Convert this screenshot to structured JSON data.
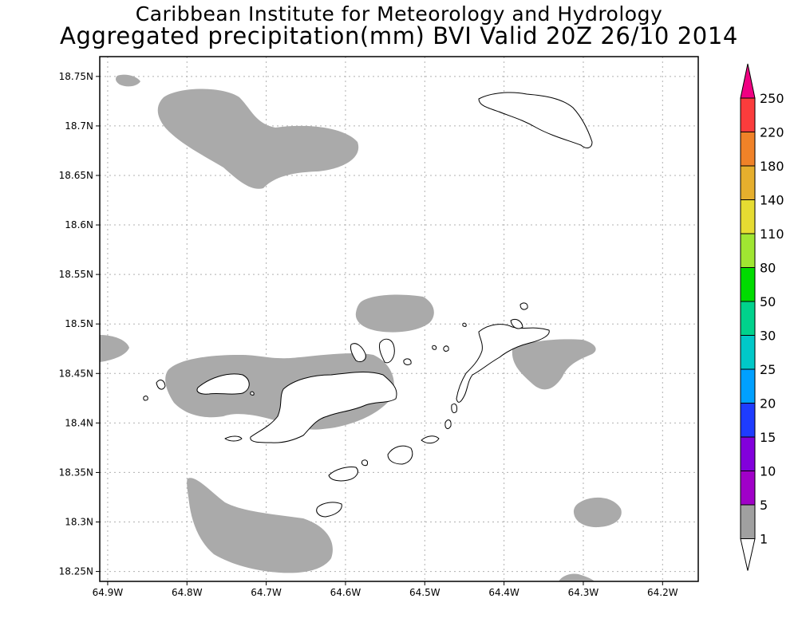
{
  "title_line1": "Caribbean Institute for Meteorology and Hydrology",
  "title_line2": "Aggregated precipitation(mm) BVI Valid 20Z 26/10 2014",
  "map": {
    "lon_range": [
      -64.91,
      -64.155
    ],
    "lat_range": [
      18.24,
      18.77
    ],
    "lon_ticks": [
      {
        "value": -64.9,
        "label": "64.9W"
      },
      {
        "value": -64.8,
        "label": "64.8W"
      },
      {
        "value": -64.7,
        "label": "64.7W"
      },
      {
        "value": -64.6,
        "label": "64.6W"
      },
      {
        "value": -64.5,
        "label": "64.5W"
      },
      {
        "value": -64.4,
        "label": "64.4W"
      },
      {
        "value": -64.3,
        "label": "64.3W"
      },
      {
        "value": -64.2,
        "label": "64.2W"
      }
    ],
    "lat_ticks": [
      {
        "value": 18.75,
        "label": "18.75N"
      },
      {
        "value": 18.7,
        "label": "18.7N"
      },
      {
        "value": 18.65,
        "label": "18.65N"
      },
      {
        "value": 18.6,
        "label": "18.6N"
      },
      {
        "value": 18.55,
        "label": "18.55N"
      },
      {
        "value": 18.5,
        "label": "18.5N"
      },
      {
        "value": 18.45,
        "label": "18.45N"
      },
      {
        "value": 18.4,
        "label": "18.4N"
      },
      {
        "value": 18.35,
        "label": "18.35N"
      },
      {
        "value": 18.3,
        "label": "18.3N"
      },
      {
        "value": 18.25,
        "label": "18.25N"
      }
    ],
    "grid": true,
    "precip_color": "#aaaaaa",
    "land_color": "#ffffff",
    "precip_value_shown": "1-5"
  },
  "colorbar": {
    "position": "right",
    "colors": [
      "#ffffff",
      "#a0a0a0",
      "#a000c8",
      "#8200dc",
      "#1e3cff",
      "#00a0ff",
      "#00c8c8",
      "#00d28c",
      "#00dc00",
      "#a0e632",
      "#e6dc32",
      "#e6af2d",
      "#f08228",
      "#fa3c3c",
      "#f00082"
    ],
    "labels": [
      "1",
      "5",
      "10",
      "15",
      "20",
      "25",
      "30",
      "50",
      "80",
      "110",
      "140",
      "180",
      "220",
      "250"
    ]
  }
}
